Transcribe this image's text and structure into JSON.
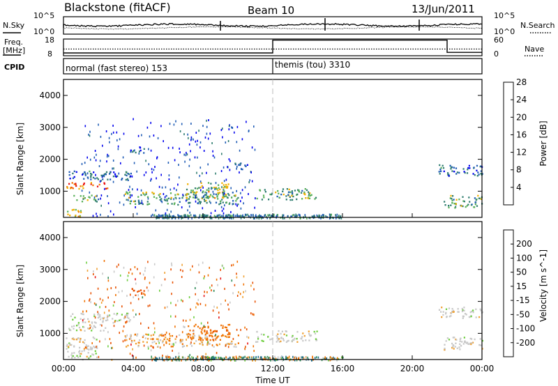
{
  "header": {
    "station": "Blackstone (fitACF)",
    "beam": "Beam 10",
    "date": "13/Jun/2011"
  },
  "strip_labels": {
    "nsky": "N.Sky",
    "freq": "Freq.",
    "freq_unit": "[MHz]",
    "cpid": "CPID",
    "nsearch": "N.Search",
    "nave": "Nave"
  },
  "nsky_ticks": [
    "10^5",
    "10^0"
  ],
  "freq_ticks": [
    "18",
    "8"
  ],
  "nave_ticks": [
    "60",
    "0"
  ],
  "cpid": {
    "mode1": "normal (fast stereo) 153",
    "mode2": "themis (tou) 3310"
  },
  "x_ticks": [
    "00:00",
    "04:00",
    "08:00",
    "12:00",
    "16:00",
    "20:00",
    "00:00"
  ],
  "x_label": "Time UT",
  "y_label": "Slant Range [km]",
  "y_ticks": [
    "1000",
    "2000",
    "3000",
    "4000"
  ],
  "power_scale": {
    "label": "Power [dB]",
    "ticks": [
      "4",
      "8",
      "12",
      "16",
      "20",
      "24",
      "28"
    ],
    "colors": [
      "#0000ee",
      "#1e5bb5",
      "#2f7d6f",
      "#58b058",
      "#f0b000",
      "#f07000",
      "#e81010"
    ]
  },
  "velocity_scale": {
    "label": "Velocity [m s^-1]",
    "ticks": [
      "200",
      "100",
      "50",
      "15",
      "-15",
      "-50",
      "-100",
      "-200"
    ],
    "colors": [
      "#1e3cb4",
      "#1e6e8c",
      "#2e8b57",
      "#6ccd3c",
      "#c8c8c8",
      "#f0a030",
      "#f07000",
      "#e85000",
      "#e81010"
    ]
  },
  "chart_data": {
    "type": "heatmap",
    "title": "Blackstone (fitACF) Beam 10 13/Jun/2011",
    "xlabel": "Time UT",
    "ylabel": "Slant Range [km]",
    "xlim": [
      "00:00",
      "24:00"
    ],
    "ylim": [
      180,
      4500
    ],
    "x_ticks": [
      "00:00",
      "04:00",
      "08:00",
      "12:00",
      "16:00",
      "20:00",
      "00:00"
    ],
    "y_ticks": [
      1000,
      2000,
      3000,
      4000
    ],
    "panels": [
      {
        "quantity": "Power",
        "unit": "dB",
        "color_range": [
          0,
          32
        ],
        "regions": [
          {
            "t0": 0.3,
            "t1": 4.0,
            "r0": 1350,
            "r1": 1650,
            "value": 8
          },
          {
            "t0": 0.1,
            "t1": 2.5,
            "r0": 1100,
            "r1": 1300,
            "value": 26
          },
          {
            "t0": 0.4,
            "t1": 2.0,
            "r0": 700,
            "r1": 900,
            "value": 14
          },
          {
            "t0": 0.1,
            "t1": 1.0,
            "r0": 200,
            "r1": 500,
            "value": 20
          },
          {
            "t0": 3.5,
            "t1": 10.0,
            "r0": 600,
            "r1": 1000,
            "value": 14
          },
          {
            "t0": 7.0,
            "t1": 9.5,
            "r0": 800,
            "r1": 1300,
            "value": 18
          },
          {
            "t0": 3.8,
            "t1": 4.6,
            "r0": 2200,
            "r1": 2450,
            "value": 8
          },
          {
            "t0": 9.8,
            "t1": 10.6,
            "r0": 1700,
            "r1": 1900,
            "value": 8
          },
          {
            "t0": 11.0,
            "t1": 14.5,
            "r0": 750,
            "r1": 1100,
            "value": 14
          },
          {
            "t0": 21.5,
            "t1": 24.0,
            "r0": 1500,
            "r1": 1850,
            "value": 8
          },
          {
            "t0": 21.8,
            "t1": 24.0,
            "r0": 500,
            "r1": 900,
            "value": 14
          }
        ],
        "scatter_ranges": [
          {
            "t0": 1.0,
            "t1": 11.0,
            "r0": 180,
            "r1": 3300,
            "value": 5
          },
          {
            "t0": 5.0,
            "t1": 16.0,
            "r0": 180,
            "r1": 300,
            "value": 10
          }
        ]
      },
      {
        "quantity": "Velocity",
        "unit": "m s^-1",
        "color_range": [
          -200,
          200
        ],
        "regions": [
          {
            "t0": 0.3,
            "t1": 4.0,
            "r0": 1350,
            "r1": 1650,
            "value": 0
          },
          {
            "t0": 0.1,
            "t1": 2.5,
            "r0": 1100,
            "r1": 1300,
            "value": 0
          },
          {
            "t0": 0.1,
            "t1": 2.0,
            "r0": 200,
            "r1": 900,
            "value": 0
          },
          {
            "t0": 3.5,
            "t1": 10.0,
            "r0": 600,
            "r1": 1000,
            "value": -20
          },
          {
            "t0": 7.0,
            "t1": 9.5,
            "r0": 800,
            "r1": 1300,
            "value": -60
          },
          {
            "t0": 3.8,
            "t1": 4.6,
            "r0": 2200,
            "r1": 2450,
            "value": -110
          },
          {
            "t0": 11.0,
            "t1": 14.5,
            "r0": 750,
            "r1": 1100,
            "value": 0
          },
          {
            "t0": 21.5,
            "t1": 24.0,
            "r0": 1500,
            "r1": 1850,
            "value": 0
          },
          {
            "t0": 21.8,
            "t1": 24.0,
            "r0": 500,
            "r1": 900,
            "value": 0
          }
        ],
        "scatter_ranges": [
          {
            "t0": 1.0,
            "t1": 11.0,
            "r0": 180,
            "r1": 3300,
            "value": -60
          },
          {
            "t0": 5.0,
            "t1": 16.0,
            "r0": 180,
            "r1": 300,
            "value": 30
          }
        ]
      }
    ],
    "frequency_MHz": [
      {
        "t0": 0,
        "t1": 24,
        "value": 12
      }
    ],
    "nave": [
      {
        "t0": 0,
        "t1": 12,
        "value": 10
      },
      {
        "t0": 12,
        "t1": 22,
        "value": 56
      },
      {
        "t0": 22,
        "t1": 24,
        "value": 12
      }
    ],
    "cpid_modes": [
      {
        "t0": 0,
        "t1": 12,
        "label": "normal (fast stereo) 153"
      },
      {
        "t0": 12,
        "t1": 24,
        "label": "themis (tou) 3310"
      }
    ]
  }
}
